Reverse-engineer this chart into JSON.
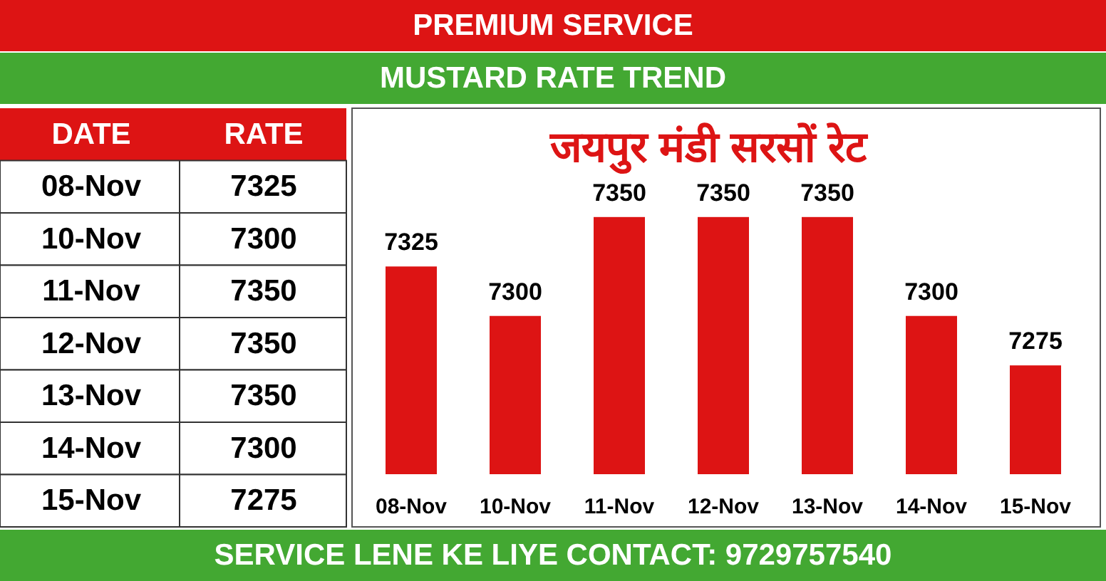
{
  "chart_data": [
    {
      "type": "other",
      "title": "PREMIUM SERVICE",
      "subtitle": "MUSTARD RATE TREND",
      "annotations": [
        "DATE",
        "RATE"
      ],
      "categories": [
        "08-Nov",
        "10-Nov",
        "11-Nov",
        "12-Nov",
        "13-Nov",
        "14-Nov",
        "15-Nov"
      ],
      "values": [
        7325,
        7300,
        7350,
        7350,
        7350,
        7300,
        7275
      ],
      "data_labels": true
    },
    {
      "type": "bar",
      "title": "जयपुर मंडी सरसों रेट",
      "annotations": [
        "SERVICE LENE KE LIYE CONTACT: 9729757540"
      ],
      "categories": [
        "08-Nov",
        "10-Nov",
        "11-Nov",
        "12-Nov",
        "13-Nov",
        "14-Nov",
        "15-Nov"
      ],
      "values": [
        7325,
        7300,
        7350,
        7350,
        7350,
        7300,
        7275
      ],
      "color": "#dd1414",
      "ylim": [
        7220,
        7405
      ],
      "data_labels": true
    }
  ]
}
